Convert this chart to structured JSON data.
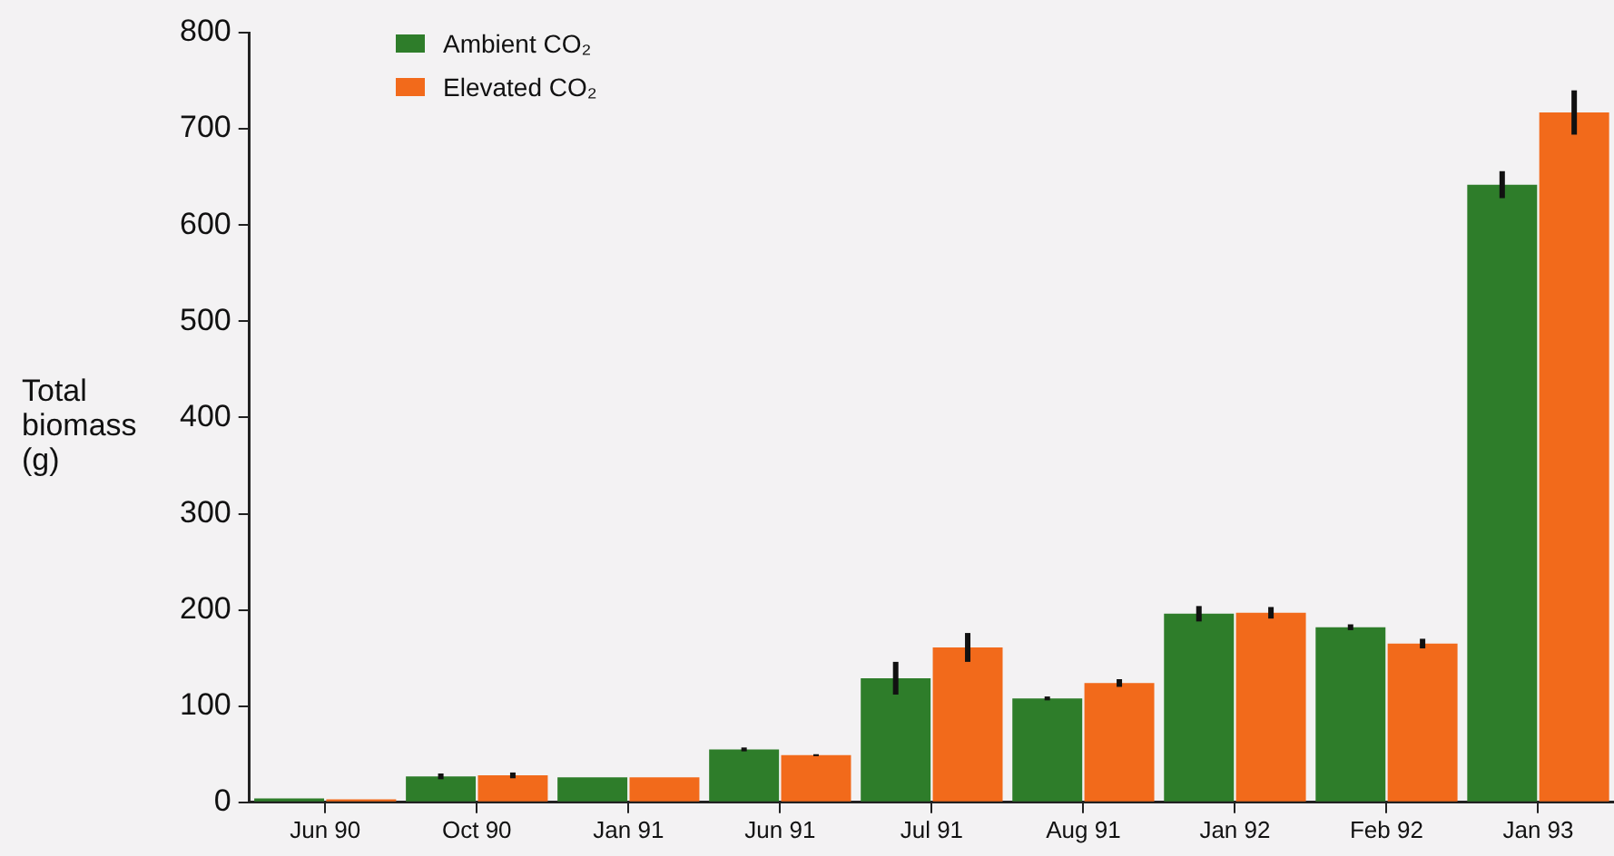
{
  "chart_data": {
    "type": "bar",
    "ylabel": "Total biomass (g)",
    "categories": [
      "Jun 90",
      "Oct 90",
      "Jan 91",
      "Jun 91",
      "Jul 91",
      "Aug 91",
      "Jan 92",
      "Feb 92",
      "Jan 93"
    ],
    "series": [
      {
        "name": "Ambient CO₂",
        "color": "#2e7d2a",
        "values": [
          4,
          27,
          26,
          55,
          129,
          108,
          196,
          182,
          642
        ],
        "errors": [
          null,
          3,
          null,
          2,
          17,
          2,
          8,
          3,
          14
        ]
      },
      {
        "name": "Elevated CO₂",
        "color": "#f26a1b",
        "values": [
          3,
          28,
          26,
          49,
          161,
          124,
          197,
          165,
          717
        ],
        "errors": [
          null,
          3,
          null,
          1,
          15,
          4,
          6,
          5,
          23
        ]
      }
    ],
    "ylim": [
      0,
      800
    ],
    "yticks": [
      0,
      100,
      200,
      300,
      400,
      500,
      600,
      700,
      800
    ],
    "grid": false,
    "legend": "top left"
  }
}
